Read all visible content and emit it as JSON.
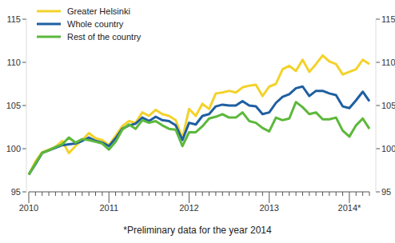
{
  "chart_data": {
    "type": "line",
    "footnote": "*Preliminary data for the year 2014",
    "categories": [
      "2010",
      null,
      null,
      null,
      null,
      null,
      null,
      null,
      null,
      null,
      null,
      null,
      "2011",
      null,
      null,
      null,
      null,
      null,
      null,
      null,
      null,
      null,
      null,
      null,
      "2012",
      null,
      null,
      null,
      null,
      null,
      null,
      null,
      null,
      null,
      null,
      null,
      "2013",
      null,
      null,
      null,
      null,
      null,
      null,
      null,
      null,
      null,
      null,
      null,
      "2014*",
      null,
      null,
      null
    ],
    "series": [
      {
        "name": "Greater Helsinki",
        "color": "#f3d22b",
        "values": [
          97.0,
          98.5,
          99.6,
          99.9,
          100.2,
          100.9,
          99.5,
          100.3,
          101.0,
          101.8,
          101.2,
          101.0,
          100.4,
          101.5,
          102.6,
          103.2,
          103.0,
          104.2,
          103.8,
          104.5,
          104.0,
          103.8,
          103.3,
          101.2,
          104.6,
          103.8,
          105.2,
          104.6,
          106.4,
          106.5,
          106.7,
          106.5,
          107.1,
          107.3,
          107.4,
          106.1,
          107.2,
          107.5,
          109.2,
          109.6,
          109.0,
          110.3,
          108.9,
          109.8,
          110.8,
          110.1,
          109.8,
          108.6,
          108.9,
          109.2,
          110.3,
          109.8
        ]
      },
      {
        "name": "Whole country",
        "color": "#1f5fa0",
        "values": [
          97.0,
          98.2,
          99.5,
          99.8,
          100.1,
          100.4,
          100.5,
          100.6,
          100.9,
          101.3,
          100.9,
          100.7,
          100.3,
          101.2,
          102.3,
          102.7,
          102.9,
          103.6,
          103.2,
          103.7,
          103.3,
          103.2,
          102.7,
          101.0,
          103.0,
          102.8,
          103.8,
          104.0,
          104.9,
          105.1,
          105.0,
          105.0,
          105.5,
          105.0,
          104.9,
          104.0,
          104.2,
          105.3,
          106.0,
          106.3,
          107.0,
          107.2,
          106.1,
          106.7,
          106.7,
          106.4,
          106.2,
          104.9,
          104.7,
          105.6,
          106.6,
          105.5
        ]
      },
      {
        "name": "Rest of the country",
        "color": "#5cb83b",
        "values": [
          97.0,
          98.3,
          99.5,
          99.8,
          100.2,
          100.5,
          101.3,
          100.7,
          101.1,
          101.0,
          100.8,
          100.6,
          99.9,
          100.8,
          102.2,
          102.8,
          102.3,
          103.3,
          103.0,
          103.2,
          102.7,
          102.3,
          102.2,
          100.3,
          101.9,
          101.9,
          102.6,
          103.5,
          103.7,
          104.0,
          103.6,
          103.6,
          104.2,
          103.2,
          103.0,
          102.4,
          102.0,
          103.6,
          103.3,
          103.5,
          105.4,
          104.8,
          104.0,
          104.2,
          103.4,
          103.4,
          103.6,
          102.1,
          101.4,
          102.7,
          103.5,
          102.3
        ]
      }
    ],
    "ylim": [
      95,
      115
    ],
    "yticks": [
      95,
      100,
      105,
      110,
      115
    ],
    "grid": false,
    "legend": "upper left"
  }
}
